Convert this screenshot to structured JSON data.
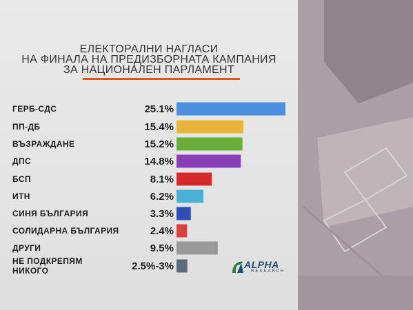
{
  "title_lines": [
    "ЕЛЕКТОРАЛНИ НАГЛАСИ",
    "НА ФИНАЛА НА ПРЕДИЗБОРНАТА КАМПАНИЯ",
    "ЗА НАЦИОНАЛЕН ПАРЛАМЕНТ"
  ],
  "logo": {
    "name": "ALPHA",
    "sub": "RESEARCH"
  },
  "chart_data": {
    "type": "bar",
    "orientation": "horizontal",
    "categories": [
      [
        "ГЕРБ-СДС"
      ],
      [
        "ПП-ДБ"
      ],
      [
        "ВЪЗРАЖДАНЕ"
      ],
      [
        "ДПС"
      ],
      [
        "БСП"
      ],
      [
        "ИТН"
      ],
      [
        "СИНЯ БЪЛГАРИЯ"
      ],
      [
        "СОЛИДАРНА БЪЛГАРИЯ"
      ],
      [
        "ДРУГИ"
      ],
      [
        "НЕ ПОДКРЕПЯМ",
        "НИКОГО"
      ]
    ],
    "values": [
      25.1,
      15.4,
      15.2,
      14.8,
      8.1,
      6.2,
      3.3,
      2.4,
      9.5,
      2.5
    ],
    "value_labels": [
      "25.1%",
      "15.4%",
      "15.2%",
      "14.8%",
      "8.1%",
      "6.2%",
      "3.3%",
      "2.4%",
      "9.5%",
      "2.5%-3%"
    ],
    "colors": [
      "#4a8fe0",
      "#e8b53a",
      "#6aae3a",
      "#8a3fb8",
      "#d62a2a",
      "#4ab0d6",
      "#2f4fb8",
      "#d94040",
      "#999999",
      "#5a6b7a"
    ],
    "xlim": [
      0,
      25.1
    ]
  }
}
